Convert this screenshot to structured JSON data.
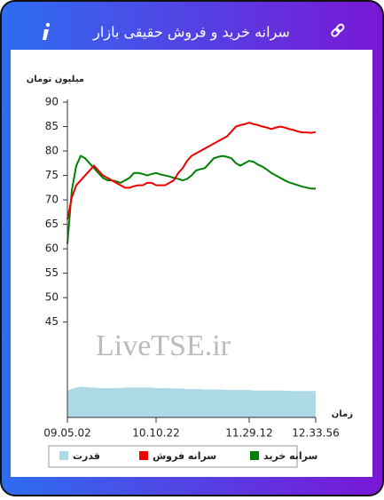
{
  "chart_data": {
    "type": "line",
    "title": "سرانه خرید و فروش حقیقی بازار",
    "y_label": "میلیون تومان",
    "x_label": "زمان",
    "watermark": "LiveTSE.ir",
    "categories": [
      "09.05.02",
      null,
      null,
      null,
      null,
      null,
      null,
      null,
      null,
      null,
      null,
      null,
      null,
      null,
      null,
      null,
      null,
      null,
      null,
      null,
      "10.10.22",
      null,
      null,
      null,
      null,
      null,
      null,
      null,
      null,
      null,
      null,
      null,
      null,
      null,
      null,
      null,
      null,
      null,
      null,
      null,
      null,
      "11.29.12",
      null,
      null,
      null,
      null,
      null,
      null,
      null,
      null,
      null,
      null,
      null,
      null,
      null,
      null,
      "12.33.56"
    ],
    "series": [
      {
        "name": "سرانه خرید",
        "color": "#008000",
        "type": "line",
        "values": [
          61,
          72,
          77,
          79,
          78.5,
          77.5,
          76.5,
          75.5,
          74.5,
          74,
          74,
          73.8,
          73.5,
          74,
          74.5,
          75.5,
          75.5,
          75.3,
          75,
          75.3,
          75.5,
          75.2,
          75,
          74.8,
          74.5,
          74.3,
          74,
          74.3,
          75,
          76,
          76.3,
          76.5,
          77.5,
          78.5,
          78.8,
          79,
          78.8,
          78.5,
          77.5,
          77,
          77.5,
          78,
          77.8,
          77.2,
          76.8,
          76.2,
          75.5,
          75,
          74.5,
          74,
          73.6,
          73.3,
          73,
          72.7,
          72.5,
          72.3,
          72.3
        ]
      },
      {
        "name": "سرانه فروش",
        "color": "#ee0000",
        "type": "line",
        "values": [
          66,
          70.5,
          73,
          74,
          75,
          76,
          77,
          76,
          75,
          74.5,
          74,
          73.5,
          73,
          72.5,
          72.5,
          72.8,
          73,
          73,
          73.5,
          73.5,
          73,
          73,
          73,
          73.5,
          74,
          75.5,
          76.5,
          78,
          79,
          79.5,
          80,
          80.5,
          81,
          81.5,
          82,
          82.5,
          83,
          84,
          85,
          85.3,
          85.5,
          85.8,
          85.5,
          85.3,
          85,
          84.8,
          84.5,
          84.8,
          85,
          84.8,
          84.5,
          84.3,
          84,
          83.8,
          83.8,
          83.7,
          83.9
        ]
      },
      {
        "name": "قدرت",
        "color": "#add8e6",
        "type": "area",
        "values": [
          31,
          31.3,
          31.6,
          31.8,
          31.7,
          31.6,
          31.6,
          31.5,
          31.5,
          31.5,
          31.5,
          31.5,
          31.5,
          31.6,
          31.6,
          31.6,
          31.6,
          31.6,
          31.6,
          31.6,
          31.5,
          31.5,
          31.5,
          31.5,
          31.4,
          31.4,
          31.4,
          31.3,
          31.3,
          31.3,
          31.3,
          31.2,
          31.2,
          31.2,
          31.2,
          31.2,
          31.1,
          31.1,
          31.1,
          31.1,
          31.1,
          31.1,
          31,
          31,
          31,
          31,
          31,
          31,
          31,
          31,
          30.9,
          30.9,
          30.9,
          30.9,
          30.9,
          30.9,
          30.9
        ]
      }
    ],
    "ylim": [
      25.5,
      90
    ],
    "yticks": [
      45,
      50,
      55,
      60,
      65,
      70,
      75,
      80,
      85,
      90
    ],
    "grid": false
  }
}
